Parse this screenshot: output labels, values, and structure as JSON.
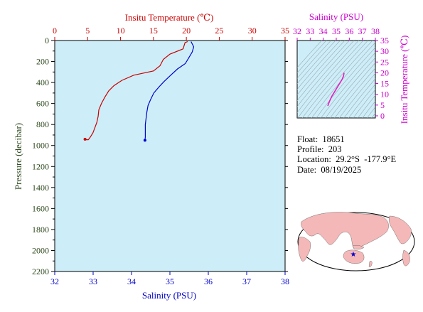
{
  "colors": {
    "temperature": "#cc0000",
    "salinity": "#0000cc",
    "ts_curve": "#e020c0",
    "ts_axis": "#cc00cc",
    "pressure_axis": "#2e4a1e",
    "plot_bg": "#cdeef8",
    "land": "#f4b8b8",
    "ocean": "#ffffff",
    "float_marker": "#0000cc"
  },
  "main_chart": {
    "title_top": "Insitu Temperature (℃)",
    "xlabel_bottom": "Salinity (PSU)",
    "ylabel": "Pressure (decibar)"
  },
  "ts_chart": {
    "title_top": "Salinity (PSU)",
    "ylabel_right": "Insitu Temperature (℃)"
  },
  "info": {
    "float": "Float:  18651",
    "profile": "Profile:  203",
    "location": "Location:  29.2°S  -177.9°E",
    "date": "Date:  08/19/2025"
  },
  "chart_data": [
    {
      "type": "line",
      "title": "",
      "y_axis": {
        "label": "Pressure (decibar)",
        "range": [
          0,
          2200
        ],
        "inverted": true,
        "ticks": [
          0,
          200,
          400,
          600,
          800,
          1000,
          1200,
          1400,
          1600,
          1800,
          2000,
          2200
        ]
      },
      "x_axis_top": {
        "label": "Insitu Temperature (℃)",
        "range": [
          0,
          35
        ],
        "ticks": [
          0,
          5,
          10,
          15,
          20,
          25,
          30,
          35
        ]
      },
      "x_axis_bottom": {
        "label": "Salinity (PSU)",
        "range": [
          32,
          38
        ],
        "ticks": [
          32,
          33,
          34,
          35,
          36,
          37,
          38
        ]
      },
      "grid": false,
      "series": [
        {
          "name": "Insitu Temperature (℃)",
          "axis": "top",
          "points": [
            [
              20.2,
              10
            ],
            [
              19.8,
              20
            ],
            [
              19.5,
              80
            ],
            [
              17.5,
              130
            ],
            [
              16.5,
              180
            ],
            [
              16,
              240
            ],
            [
              15,
              290
            ],
            [
              12,
              330
            ],
            [
              10.2,
              380
            ],
            [
              9,
              430
            ],
            [
              8.2,
              480
            ],
            [
              7.6,
              540
            ],
            [
              7.1,
              600
            ],
            [
              6.7,
              660
            ],
            [
              6.6,
              720
            ],
            [
              6.4,
              780
            ],
            [
              6.1,
              830
            ],
            [
              5.8,
              880
            ],
            [
              5.4,
              920
            ],
            [
              5.1,
              945
            ],
            [
              4.8,
              945
            ],
            [
              4.6,
              940
            ]
          ]
        },
        {
          "name": "Salinity (PSU)",
          "axis": "bottom",
          "points": [
            [
              35.55,
              10
            ],
            [
              35.62,
              60
            ],
            [
              35.58,
              110
            ],
            [
              35.5,
              160
            ],
            [
              35.4,
              220
            ],
            [
              35.2,
              270
            ],
            [
              35.02,
              330
            ],
            [
              34.85,
              390
            ],
            [
              34.72,
              440
            ],
            [
              34.58,
              500
            ],
            [
              34.5,
              560
            ],
            [
              34.43,
              620
            ],
            [
              34.4,
              680
            ],
            [
              34.38,
              740
            ],
            [
              34.36,
              800
            ],
            [
              34.36,
              860
            ],
            [
              34.36,
              920
            ],
            [
              34.35,
              950
            ]
          ]
        }
      ]
    },
    {
      "type": "line",
      "title": "",
      "x_axis_top": {
        "label": "Salinity (PSU)",
        "range": [
          32,
          38
        ],
        "ticks": [
          32,
          33,
          34,
          35,
          36,
          37,
          38
        ]
      },
      "y_axis_right": {
        "label": "Insitu Temperature (℃)",
        "range": [
          -1,
          35
        ],
        "ticks": [
          0,
          5,
          10,
          15,
          20,
          25,
          30,
          35
        ]
      },
      "grid": false,
      "series": [
        {
          "name": "",
          "points": [
            [
              34.35,
              4.6
            ],
            [
              34.4,
              5.5
            ],
            [
              34.5,
              7
            ],
            [
              34.65,
              9
            ],
            [
              34.85,
              11
            ],
            [
              35.05,
              13
            ],
            [
              35.25,
              15
            ],
            [
              35.45,
              17
            ],
            [
              35.55,
              18.5
            ],
            [
              35.6,
              20
            ]
          ]
        }
      ]
    }
  ]
}
